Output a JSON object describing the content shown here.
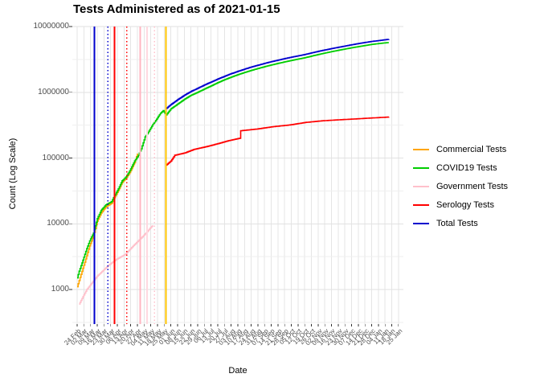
{
  "chart_data": {
    "type": "line",
    "title": "Tests Administered as of 2021-01-15",
    "xlabel": "Date",
    "ylabel": "Count (Log Scale)",
    "y_scale": "log10",
    "ylim": [
      1000,
      10000000
    ],
    "y_tick_labels": [
      "10000000",
      "1000000",
      "100000",
      "10000",
      "1000"
    ],
    "y_tick_values": [
      10000000,
      1000000,
      100000,
      10000,
      1000
    ],
    "x_start_date": "2020-02-24",
    "x_end_date": "2021-01-15",
    "x_tick_labels": [
      "24 Feb",
      "02 Mar",
      "09 Mar",
      "16 Mar",
      "23 Mar",
      "30 Mar",
      "06 Apr",
      "13 Apr",
      "20 Apr",
      "27 Apr",
      "04 May",
      "11 May",
      "18 May",
      "25 May",
      "01 Jun",
      "08 Jun",
      "15 Jun",
      "22 Jun",
      "29 Jun",
      "06 Jul",
      "13 Jul",
      "20 Jul",
      "27 Jul",
      "03 Aug",
      "10 Aug",
      "17 Aug",
      "24 Aug",
      "31 Aug",
      "07 Sep",
      "14 Sep",
      "21 Sep",
      "28 Sep",
      "05 Oct",
      "12 Oct",
      "19 Oct",
      "26 Oct",
      "02 Nov",
      "09 Nov",
      "16 Nov",
      "23 Nov",
      "30 Nov",
      "07 Dec",
      "14 Dec",
      "21 Dec",
      "28 Dec",
      "04 Jan",
      "11 Jan",
      "18 Jan",
      "25 Jan"
    ],
    "grid": true,
    "legend_position": "right",
    "series": [
      {
        "name": "Commercial Tests",
        "color": "#FFA500",
        "segments": [
          [
            [
              "2020-02-24",
              1100
            ],
            [
              "2020-02-28",
              1700
            ],
            [
              "2020-03-03",
              2600
            ],
            [
              "2020-03-08",
              4600
            ],
            [
              "2020-03-12",
              6500
            ],
            [
              "2020-03-16",
              11000
            ],
            [
              "2020-03-20",
              14500
            ],
            [
              "2020-03-25",
              18000
            ],
            [
              "2020-03-31",
              20500
            ],
            [
              "2020-04-02",
              23500
            ],
            [
              "2020-04-07",
              32000
            ],
            [
              "2020-04-11",
              42500
            ],
            [
              "2020-04-15",
              49000
            ],
            [
              "2020-04-19",
              60000
            ],
            [
              "2020-04-24",
              85000
            ],
            [
              "2020-04-27",
              117000
            ]
          ]
        ]
      },
      {
        "name": "COVID19 Tests",
        "color": "#00CD00",
        "segments": [
          [
            [
              "2020-02-24",
              1500
            ],
            [
              "2020-02-26",
              1900
            ],
            [
              "2020-03-01",
              2800
            ],
            [
              "2020-03-05",
              4200
            ],
            [
              "2020-03-08",
              5500
            ],
            [
              "2020-03-12",
              7200
            ],
            [
              "2020-03-16",
              12000
            ],
            [
              "2020-03-20",
              16000
            ],
            [
              "2020-03-25",
              19400
            ],
            [
              "2020-03-31",
              21700
            ],
            [
              "2020-04-02",
              25000
            ],
            [
              "2020-04-07",
              34000
            ],
            [
              "2020-04-11",
              45000
            ],
            [
              "2020-04-15",
              51500
            ],
            [
              "2020-04-19",
              64000
            ],
            [
              "2020-04-24",
              90000
            ],
            [
              "2020-04-28",
              110000
            ],
            [
              "2020-05-01",
              138000
            ],
            [
              "2020-05-05",
              210000
            ],
            [
              "2020-05-09",
              256000
            ],
            [
              "2020-05-13",
              322000
            ],
            [
              "2020-05-17",
              390000
            ],
            [
              "2020-05-21",
              478000
            ],
            [
              "2020-05-24",
              525000
            ],
            [
              "2020-05-27",
              452000
            ],
            [
              "2020-06-01",
              560000
            ],
            [
              "2020-06-08",
              660000
            ],
            [
              "2020-06-15",
              780000
            ],
            [
              "2020-06-22",
              900000
            ],
            [
              "2020-06-29",
              1000000
            ],
            [
              "2020-07-06",
              1120000
            ],
            [
              "2020-07-13",
              1250000
            ],
            [
              "2020-07-20",
              1400000
            ],
            [
              "2020-07-27",
              1550000
            ],
            [
              "2020-08-03",
              1700000
            ],
            [
              "2020-08-10",
              1850000
            ],
            [
              "2020-08-17",
              2000000
            ],
            [
              "2020-08-24",
              2150000
            ],
            [
              "2020-08-31",
              2300000
            ],
            [
              "2020-09-07",
              2450000
            ],
            [
              "2020-09-14",
              2600000
            ],
            [
              "2020-09-21",
              2750000
            ],
            [
              "2020-09-28",
              2900000
            ],
            [
              "2020-10-05",
              3050000
            ],
            [
              "2020-10-12",
              3200000
            ],
            [
              "2020-10-19",
              3350000
            ],
            [
              "2020-10-26",
              3550000
            ],
            [
              "2020-11-02",
              3750000
            ],
            [
              "2020-11-09",
              3950000
            ],
            [
              "2020-11-16",
              4150000
            ],
            [
              "2020-11-23",
              4350000
            ],
            [
              "2020-11-30",
              4550000
            ],
            [
              "2020-12-07",
              4750000
            ],
            [
              "2020-12-14",
              4950000
            ],
            [
              "2020-12-21",
              5150000
            ],
            [
              "2020-12-28",
              5350000
            ],
            [
              "2021-01-04",
              5500000
            ],
            [
              "2021-01-11",
              5650000
            ],
            [
              "2021-01-15",
              5700000
            ]
          ]
        ]
      },
      {
        "name": "Government Tests",
        "color": "#FFC0CB",
        "segments": [
          [
            [
              "2020-02-26",
              600
            ],
            [
              "2020-03-05",
              1000
            ],
            [
              "2020-03-16",
              1600
            ],
            [
              "2020-03-28",
              2350
            ],
            [
              "2020-04-05",
              2870
            ],
            [
              "2020-04-14",
              3400
            ],
            [
              "2020-04-25",
              5000
            ],
            [
              "2020-05-03",
              6500
            ],
            [
              "2020-05-13",
              9500
            ]
          ]
        ]
      },
      {
        "name": "Serology Tests",
        "color": "#FF0000",
        "segments": [
          [
            [
              "2020-05-27",
              350
            ],
            [
              "2020-05-27",
              4600
            ]
          ],
          [
            [
              "2020-05-27",
              78000
            ],
            [
              "2020-06-01",
              90000
            ],
            [
              "2020-06-05",
              110000
            ],
            [
              "2020-06-16",
              120000
            ],
            [
              "2020-06-25",
              135000
            ],
            [
              "2020-07-09",
              150000
            ],
            [
              "2020-07-20",
              165000
            ],
            [
              "2020-07-31",
              183000
            ],
            [
              "2020-08-12",
              200000
            ],
            [
              "2020-08-13",
              260000
            ],
            [
              "2020-08-30",
              276000
            ],
            [
              "2020-09-16",
              300000
            ],
            [
              "2020-10-03",
              318000
            ],
            [
              "2020-10-20",
              348000
            ],
            [
              "2020-11-06",
              368000
            ],
            [
              "2020-11-22",
              380000
            ],
            [
              "2020-12-09",
              392000
            ],
            [
              "2020-12-26",
              405000
            ],
            [
              "2021-01-15",
              420000
            ]
          ]
        ]
      },
      {
        "name": "Total Tests",
        "color": "#0000CD",
        "segments": [
          [
            [
              "2020-05-27",
              565000
            ],
            [
              "2020-06-01",
              650000
            ],
            [
              "2020-06-08",
              770000
            ],
            [
              "2020-06-15",
              900000
            ],
            [
              "2020-06-22",
              1030000
            ],
            [
              "2020-06-29",
              1150000
            ],
            [
              "2020-07-06",
              1290000
            ],
            [
              "2020-07-13",
              1430000
            ],
            [
              "2020-07-20",
              1590000
            ],
            [
              "2020-07-27",
              1750000
            ],
            [
              "2020-08-03",
              1920000
            ],
            [
              "2020-08-10",
              2080000
            ],
            [
              "2020-08-17",
              2250000
            ],
            [
              "2020-08-24",
              2420000
            ],
            [
              "2020-08-31",
              2580000
            ],
            [
              "2020-09-07",
              2750000
            ],
            [
              "2020-09-14",
              2920000
            ],
            [
              "2020-09-21",
              3080000
            ],
            [
              "2020-09-28",
              3250000
            ],
            [
              "2020-10-05",
              3420000
            ],
            [
              "2020-10-12",
              3580000
            ],
            [
              "2020-10-19",
              3750000
            ],
            [
              "2020-10-26",
              3970000
            ],
            [
              "2020-11-02",
              4190000
            ],
            [
              "2020-11-09",
              4400000
            ],
            [
              "2020-11-16",
              4620000
            ],
            [
              "2020-11-23",
              4830000
            ],
            [
              "2020-11-30",
              5050000
            ],
            [
              "2020-12-07",
              5280000
            ],
            [
              "2020-12-14",
              5500000
            ],
            [
              "2020-12-21",
              5720000
            ],
            [
              "2020-12-28",
              5940000
            ],
            [
              "2021-01-04",
              6100000
            ],
            [
              "2021-01-11",
              6300000
            ],
            [
              "2021-01-15",
              6400000
            ]
          ]
        ]
      }
    ],
    "vlines": [
      {
        "series": "Total Tests",
        "color": "#0000CD",
        "style": "solid",
        "date": "2020-03-13"
      },
      {
        "series": "Total Tests",
        "color": "#0000CD",
        "style": "dotted",
        "date": "2020-03-27"
      },
      {
        "series": "Serology Tests",
        "color": "#FF0000",
        "style": "solid",
        "date": "2020-04-03"
      },
      {
        "series": "Serology Tests",
        "color": "#FF0000",
        "style": "dotted",
        "date": "2020-04-16"
      },
      {
        "series": "Government Tests",
        "color": "#FFB6C1",
        "style": "solid",
        "date": "2020-04-30"
      },
      {
        "series": "Government Tests",
        "color": "#FFD9E0",
        "style": "solid",
        "date": "2020-05-07"
      },
      {
        "series": "Government Tests",
        "color": "#FFC0CB",
        "style": "dotted",
        "date": "2020-05-15"
      },
      {
        "series": "Commercial Tests",
        "color": "#FFC400",
        "style": "solid",
        "date": "2020-05-27"
      }
    ]
  },
  "legend": {
    "items": [
      {
        "label": "Commercial Tests",
        "color": "#FFA500"
      },
      {
        "label": "COVID19 Tests",
        "color": "#00CD00"
      },
      {
        "label": "Government Tests",
        "color": "#FFC0CB"
      },
      {
        "label": "Serology Tests",
        "color": "#FF0000"
      },
      {
        "label": "Total Tests",
        "color": "#0000CD"
      }
    ]
  },
  "colors": {
    "grid_major": "#E2E2E2",
    "grid_minor": "#EFEFEF",
    "grid_vertical": "#E5E5E5",
    "tick_text": "#4d4d4d",
    "tick_mark": "#333333",
    "background": "#FFFFFF"
  }
}
